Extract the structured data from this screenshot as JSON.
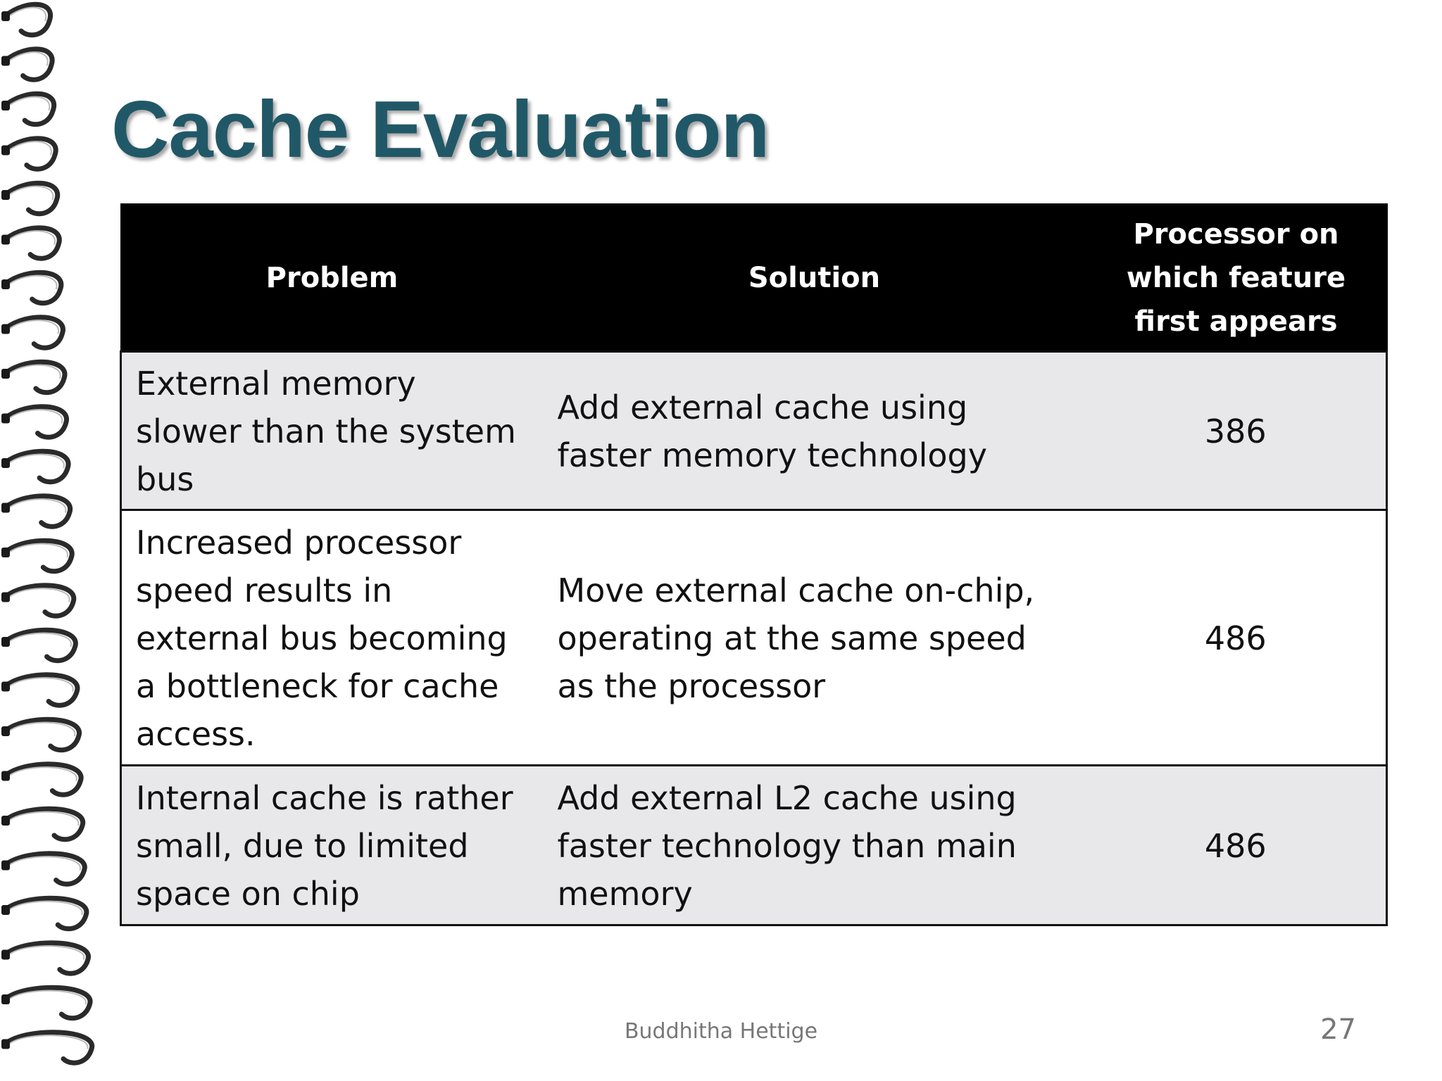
{
  "slide": {
    "title": "Cache Evaluation",
    "table": {
      "headers": {
        "problem": "Problem",
        "solution": "Solution",
        "processor": "Processor on which feature first appears"
      },
      "rows": [
        {
          "problem": "External memory slower than the system bus",
          "solution": "Add external cache using faster memory technology",
          "processor": "386"
        },
        {
          "problem": "Increased processor speed results in external bus becoming a bottleneck for cache access.",
          "solution": "Move external cache on-chip, operating at the same speed as the processor",
          "processor": "486"
        },
        {
          "problem": "Internal cache is rather small, due to limited space on chip",
          "solution": "Add external L2 cache using faster technology than main memory",
          "processor": "486"
        }
      ]
    },
    "footer": {
      "author": "Buddhitha Hettige",
      "page_number": "27"
    },
    "colors": {
      "title": "#215868",
      "header_bg": "#000000",
      "band_bg": "#e8e7ea"
    },
    "decoration": "spiral-binding-icon"
  }
}
